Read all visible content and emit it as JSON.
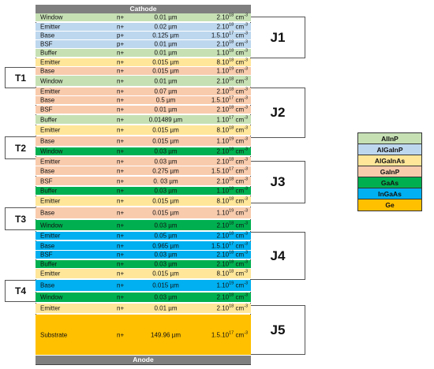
{
  "colors": {
    "AlInP": "#c6e0b4",
    "AlGaInP": "#bdd7ee",
    "AlGaInAs": "#ffe699",
    "GaInP": "#f8cbad",
    "GaAs": "#00b050",
    "InGaAs": "#00b0f0",
    "Ge": "#ffc000"
  },
  "cathode_label": "Cathode",
  "anode_label": "Anode",
  "layers": [
    {
      "name": "Window",
      "dop": "n+",
      "thk": "0.01 µm",
      "mant": "2.10",
      "exp": "18",
      "unit": " cm",
      "uexp": "-3",
      "mat": "AlInP"
    },
    {
      "name": "Emitter",
      "dop": "n+",
      "thk": "0.02 µm",
      "mant": "2.10",
      "exp": "18",
      "unit": " cm",
      "uexp": "-3",
      "mat": "AlGaInP"
    },
    {
      "name": "Base",
      "dop": "p+",
      "thk": "0.125 µm",
      "mant": "1.5.10",
      "exp": "17",
      "unit": " cm",
      "uexp": "-3",
      "mat": "AlGaInP"
    },
    {
      "name": "BSF",
      "dop": "p+",
      "thk": "0.01 µm",
      "mant": "2.10",
      "exp": "18",
      "unit": " cm",
      "uexp": "-3",
      "mat": "AlGaInP"
    },
    {
      "name": "Buffer",
      "dop": "n+",
      "thk": "0.01 µm",
      "mant": "1.10",
      "exp": "18",
      "unit": " cm",
      "uexp": "-3",
      "mat": "AlInP"
    },
    {
      "name": "Emitter",
      "dop": "n+",
      "thk": "0.015 µm",
      "mant": "8.10",
      "exp": "18",
      "unit": " cm",
      "uexp": "-3",
      "mat": "AlGaInAs"
    },
    {
      "name": "Base",
      "dop": "n+",
      "thk": "0.015 µm",
      "mant": "1.10",
      "exp": "19",
      "unit": " cm",
      "uexp": "-3",
      "mat": "GaInP"
    },
    {
      "name": "Window",
      "dop": "n+",
      "thk": "0.01 µm",
      "mant": "2.10",
      "exp": "18",
      "unit": " cm",
      "uexp": "-3",
      "mat": "AlInP"
    },
    {
      "name": "Emitter",
      "dop": "n+",
      "thk": "0.07 µm",
      "mant": "2.10",
      "exp": "18",
      "unit": " cm",
      "uexp": "-3",
      "mat": "GaInP"
    },
    {
      "name": "Base",
      "dop": "n+",
      "thk": "0.5 µm",
      "mant": "1.5.10",
      "exp": "17",
      "unit": " cm",
      "uexp": "-3",
      "mat": "GaInP"
    },
    {
      "name": "BSF",
      "dop": "n+",
      "thk": "0.01 µm",
      "mant": "2.10",
      "exp": "18",
      "unit": " cm",
      "uexp": "-3",
      "mat": "GaInP"
    },
    {
      "name": "Buffer",
      "dop": "n+",
      "thk": "0.01489 µm",
      "mant": "1.10",
      "exp": "17",
      "unit": " cm",
      "uexp": "-3",
      "mat": "AlInP"
    },
    {
      "name": "Emitter",
      "dop": "n+",
      "thk": "0.015 µm",
      "mant": "8.10",
      "exp": "18",
      "unit": " cm",
      "uexp": "-3",
      "mat": "AlGaInAs"
    },
    {
      "name": "Base",
      "dop": "n+",
      "thk": "0.015 µm",
      "mant": "1.10",
      "exp": "19",
      "unit": " cm",
      "uexp": "-3",
      "mat": "GaInP"
    },
    {
      "name": "Window",
      "dop": "n+",
      "thk": "0.03 µm",
      "mant": "2.10",
      "exp": "18",
      "unit": " cm",
      "uexp": "-3",
      "mat": "GaAs"
    },
    {
      "name": "Emitter",
      "dop": "n+",
      "thk": "0.03 µm",
      "mant": "2.10",
      "exp": "18",
      "unit": " cm",
      "uexp": "-3",
      "mat": "GaInP"
    },
    {
      "name": "Base",
      "dop": "n+",
      "thk": "0.275 µm",
      "mant": "1.5.10",
      "exp": "17",
      "unit": " cm",
      "uexp": "-3",
      "mat": "GaInP"
    },
    {
      "name": "BSF",
      "dop": "n+",
      "thk": "0. 03 µm",
      "mant": "2.10",
      "exp": "18",
      "unit": " cm",
      "uexp": "-3",
      "mat": "GaInP"
    },
    {
      "name": "Buffer",
      "dop": "n+",
      "thk": "0.03 µm",
      "mant": "1.10",
      "exp": "18",
      "unit": " cm",
      "uexp": "-3",
      "mat": "GaAs"
    },
    {
      "name": "Emitter",
      "dop": "n+",
      "thk": "0.015 µm",
      "mant": "8.10",
      "exp": "18",
      "unit": " cm",
      "uexp": "-3",
      "mat": "AlGaInAs"
    },
    {
      "name": "Base",
      "dop": "n+",
      "thk": "0.015 µm",
      "mant": "1.10",
      "exp": "19",
      "unit": " cm",
      "uexp": "-3",
      "mat": "GaInP"
    },
    {
      "name": "Window",
      "dop": "n+",
      "thk": "0.03 µm",
      "mant": "2.10",
      "exp": "18",
      "unit": " cm",
      "uexp": "-3",
      "mat": "GaAs"
    },
    {
      "name": "Emitter",
      "dop": "n+",
      "thk": "0.05 µm",
      "mant": "2.10",
      "exp": "18",
      "unit": " cm",
      "uexp": "-3",
      "mat": "InGaAs"
    },
    {
      "name": "Base",
      "dop": "n+",
      "thk": "0.965 µm",
      "mant": "1.5.10",
      "exp": "17",
      "unit": " cm",
      "uexp": "-3",
      "mat": "InGaAs"
    },
    {
      "name": "BSF",
      "dop": "n+",
      "thk": "0.03 µm",
      "mant": "2.10",
      "exp": "18",
      "unit": " cm",
      "uexp": "-3",
      "mat": "InGaAs"
    },
    {
      "name": "Buffer",
      "dop": "n+",
      "thk": "0.03 µm",
      "mant": "2.10",
      "exp": "18",
      "unit": " cm",
      "uexp": "-3",
      "mat": "GaAs"
    },
    {
      "name": "Emitter",
      "dop": "n+",
      "thk": "0.015 µm",
      "mant": "8.10",
      "exp": "18",
      "unit": " cm",
      "uexp": "-3",
      "mat": "AlGaInAs"
    },
    {
      "name": "Base",
      "dop": "n+",
      "thk": "0.015 µm",
      "mant": "1.10",
      "exp": "19",
      "unit": " cm",
      "uexp": "-3",
      "mat": "InGaAs"
    },
    {
      "name": "Window",
      "dop": "n+",
      "thk": "0.03 µm",
      "mant": "2.10",
      "exp": "18",
      "unit": " cm",
      "uexp": "-3",
      "mat": "GaAs"
    },
    {
      "name": "Emitter",
      "dop": "n+",
      "thk": "0.01 µm",
      "mant": "2.10",
      "exp": "18",
      "unit": " cm",
      "uexp": "-3",
      "mat": "AlGaInAs"
    },
    {
      "name": "Substrate",
      "dop": "n+",
      "thk": "149.96 µm",
      "mant": "1.5.10",
      "exp": "17",
      "unit": " cm",
      "uexp": "-3",
      "mat": "Ge"
    }
  ],
  "junctions": [
    "J1",
    "J2",
    "J3",
    "J4",
    "J5"
  ],
  "tunnels": [
    "T1",
    "T2",
    "T3",
    "T4"
  ],
  "legend": [
    "AlInP",
    "AlGaInP",
    "AlGaInAs",
    "GaInP",
    "GaAs",
    "InGaAs",
    "Ge"
  ]
}
